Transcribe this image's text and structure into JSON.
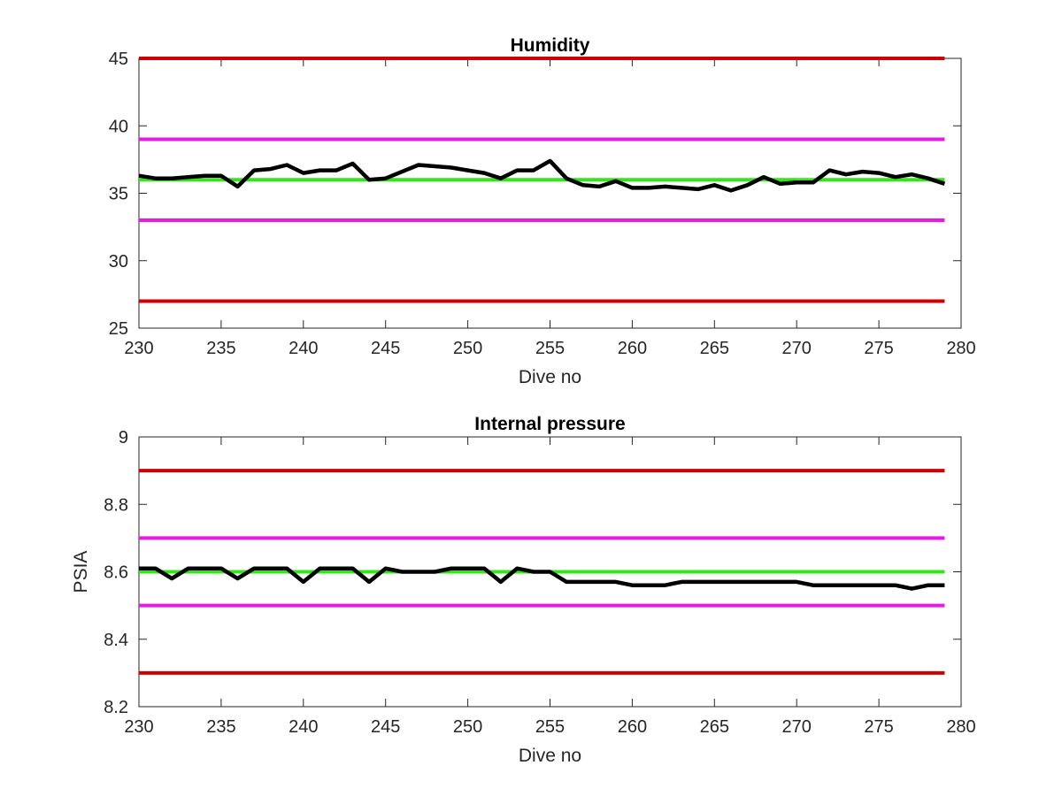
{
  "chart_data": [
    {
      "type": "line",
      "title": "Humidity",
      "xlabel": "Dive no",
      "ylabel": "",
      "xlim": [
        230,
        280
      ],
      "ylim": [
        25,
        45
      ],
      "xticks": [
        230,
        235,
        240,
        245,
        250,
        255,
        260,
        265,
        270,
        275,
        280
      ],
      "yticks": [
        25,
        30,
        35,
        40,
        45
      ],
      "x": [
        230,
        231,
        232,
        233,
        234,
        235,
        236,
        237,
        238,
        239,
        240,
        241,
        242,
        243,
        244,
        245,
        246,
        247,
        248,
        249,
        250,
        251,
        252,
        253,
        254,
        255,
        256,
        257,
        258,
        259,
        260,
        261,
        262,
        263,
        264,
        265,
        266,
        267,
        268,
        269,
        270,
        271,
        272,
        273,
        274,
        275,
        276,
        277,
        278,
        279
      ],
      "series": [
        {
          "color": "#000000",
          "values": [
            36.3,
            36.1,
            36.1,
            36.2,
            36.3,
            36.3,
            35.5,
            36.7,
            36.8,
            37.1,
            36.5,
            36.7,
            36.7,
            37.2,
            36.0,
            36.1,
            36.6,
            37.1,
            37.0,
            36.9,
            36.7,
            36.5,
            36.1,
            36.7,
            36.7,
            37.4,
            36.1,
            35.6,
            35.5,
            35.9,
            35.4,
            35.4,
            35.5,
            35.4,
            35.3,
            35.6,
            35.2,
            35.6,
            36.2,
            35.7,
            35.8,
            35.8,
            36.7,
            36.4,
            36.6,
            36.5,
            36.2,
            36.4,
            36.1,
            35.7
          ]
        }
      ],
      "reference_lines": [
        {
          "y": 45,
          "x_from": 230,
          "x_to": 279,
          "color": "#cc0000"
        },
        {
          "y": 39,
          "x_from": 230,
          "x_to": 279,
          "color": "#e619e6"
        },
        {
          "y": 36,
          "x_from": 230,
          "x_to": 279,
          "color": "#33e619"
        },
        {
          "y": 33,
          "x_from": 230,
          "x_to": 279,
          "color": "#e619e6"
        },
        {
          "y": 27,
          "x_from": 230,
          "x_to": 279,
          "color": "#cc0000"
        }
      ]
    },
    {
      "type": "line",
      "title": "Internal pressure",
      "xlabel": "Dive no",
      "ylabel": "PSIA",
      "xlim": [
        230,
        280
      ],
      "ylim": [
        8.2,
        9
      ],
      "xticks": [
        230,
        235,
        240,
        245,
        250,
        255,
        260,
        265,
        270,
        275,
        280
      ],
      "yticks": [
        8.2,
        8.4,
        8.6,
        8.8,
        9
      ],
      "x": [
        230,
        231,
        232,
        233,
        234,
        235,
        236,
        237,
        238,
        239,
        240,
        241,
        242,
        243,
        244,
        245,
        246,
        247,
        248,
        249,
        250,
        251,
        252,
        253,
        254,
        255,
        256,
        257,
        258,
        259,
        260,
        261,
        262,
        263,
        264,
        265,
        266,
        267,
        268,
        269,
        270,
        271,
        272,
        273,
        274,
        275,
        276,
        277,
        278,
        279
      ],
      "series": [
        {
          "color": "#000000",
          "values": [
            8.61,
            8.61,
            8.58,
            8.61,
            8.61,
            8.61,
            8.58,
            8.61,
            8.61,
            8.61,
            8.57,
            8.61,
            8.61,
            8.61,
            8.57,
            8.61,
            8.6,
            8.6,
            8.6,
            8.61,
            8.61,
            8.61,
            8.57,
            8.61,
            8.6,
            8.6,
            8.57,
            8.57,
            8.57,
            8.57,
            8.56,
            8.56,
            8.56,
            8.57,
            8.57,
            8.57,
            8.57,
            8.57,
            8.57,
            8.57,
            8.57,
            8.56,
            8.56,
            8.56,
            8.56,
            8.56,
            8.56,
            8.55,
            8.56,
            8.56
          ]
        }
      ],
      "reference_lines": [
        {
          "y": 8.9,
          "x_from": 230,
          "x_to": 279,
          "color": "#cc0000"
        },
        {
          "y": 8.7,
          "x_from": 230,
          "x_to": 279,
          "color": "#e619e6"
        },
        {
          "y": 8.6,
          "x_from": 230,
          "x_to": 279,
          "color": "#33e619"
        },
        {
          "y": 8.5,
          "x_from": 230,
          "x_to": 279,
          "color": "#e619e6"
        },
        {
          "y": 8.3,
          "x_from": 230,
          "x_to": 279,
          "color": "#cc0000"
        }
      ]
    }
  ]
}
